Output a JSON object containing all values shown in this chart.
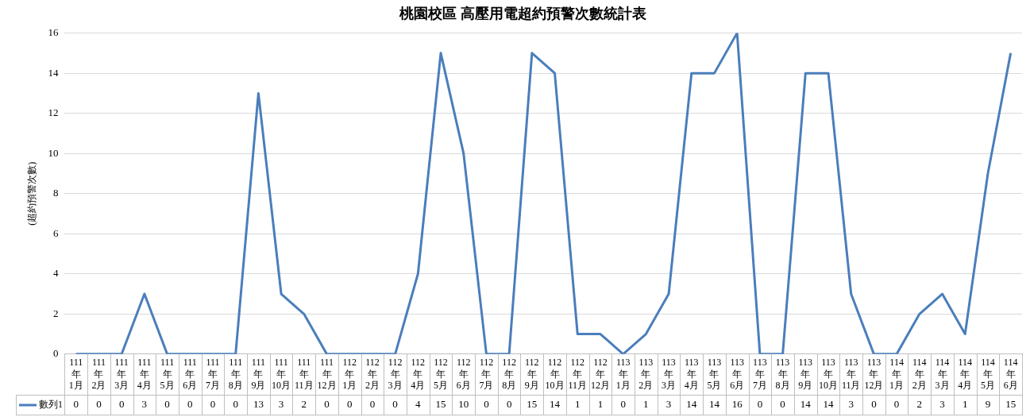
{
  "chart_data": {
    "type": "line",
    "title": "桃園校區 高壓用電超約預警次數統計表",
    "ylabel": "(超約預警次數)",
    "categories": [
      "111年1月",
      "111年2月",
      "111年3月",
      "111年4月",
      "111年5月",
      "111年6月",
      "111年7月",
      "111年8月",
      "111年9月",
      "111年10月",
      "111年11月",
      "111年12月",
      "112年1月",
      "112年2月",
      "112年3月",
      "112年4月",
      "112年5月",
      "112年6月",
      "112年7月",
      "112年8月",
      "112年9月",
      "112年10月",
      "112年11月",
      "112年12月",
      "113年1月",
      "113年2月",
      "113年3月",
      "113年4月",
      "113年5月",
      "113年6月",
      "113年7月",
      "113年8月",
      "113年9月",
      "113年10月",
      "113年11月",
      "113年12月",
      "114年1月",
      "114年2月",
      "114年3月",
      "114年4月",
      "114年5月",
      "114年6月"
    ],
    "series": [
      {
        "name": "數列1",
        "color": "#4a7ebb",
        "values": [
          0,
          0,
          0,
          3,
          0,
          0,
          0,
          0,
          13,
          3,
          2,
          0,
          0,
          0,
          0,
          4,
          15,
          10,
          0,
          0,
          15,
          14,
          1,
          1,
          0,
          1,
          3,
          14,
          14,
          16,
          0,
          0,
          14,
          14,
          3,
          0,
          0,
          2,
          3,
          1,
          9,
          15
        ]
      }
    ],
    "ylim": [
      0,
      16
    ],
    "yticks": [
      0,
      2,
      4,
      6,
      8,
      10,
      12,
      14,
      16
    ],
    "grid": "y",
    "legend": "bottom left",
    "marker": "none",
    "line_style": "solid",
    "data_labels": true
  }
}
